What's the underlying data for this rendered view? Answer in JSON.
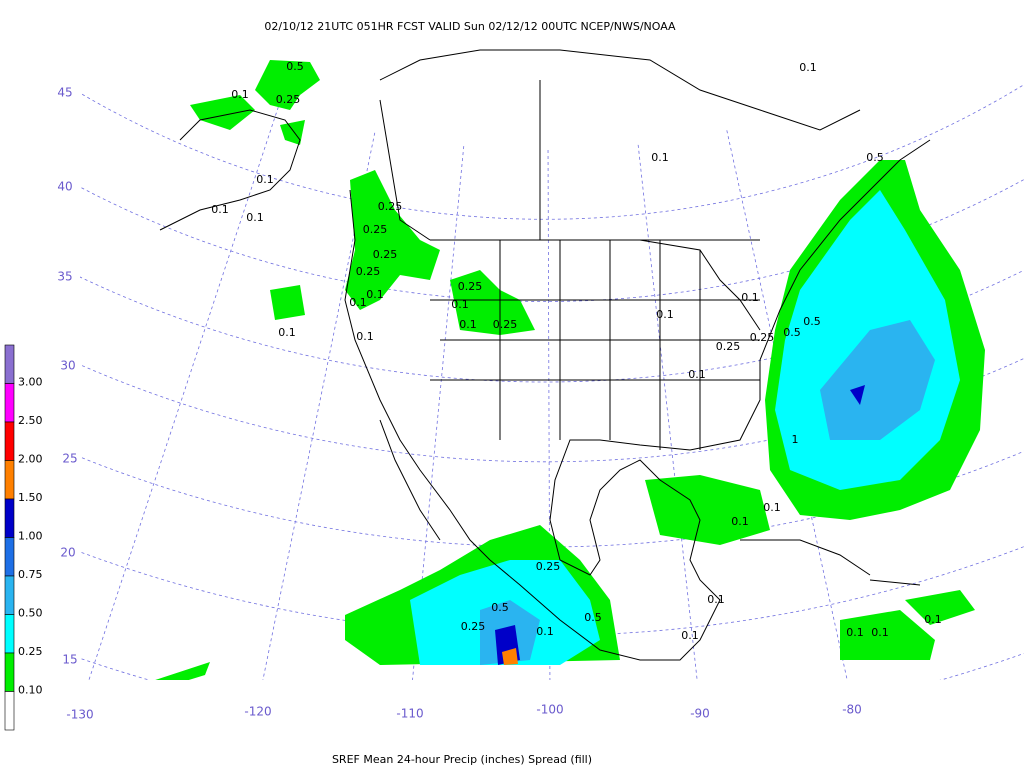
{
  "header": {
    "title": "02/10/12 21UTC  051HR  FCST VALID Sun 02/12/12 00UTC  NCEP/NWS/NOAA"
  },
  "footer": {
    "caption": "SREF Mean 24-hour Precip (inches) Spread (fill)"
  },
  "latitude_labels": [
    "45",
    "40",
    "35",
    "30",
    "25",
    "20",
    "15"
  ],
  "longitude_labels": [
    "-130",
    "-120",
    "-110",
    "-100",
    "-90",
    "-80"
  ],
  "legend": {
    "labels": [
      "3.00",
      "2.50",
      "2.00",
      "1.50",
      "1.00",
      "0.75",
      "0.50",
      "0.25",
      "0.10"
    ],
    "colors": [
      "#8a6fd0",
      "#ff00ff",
      "#ff0000",
      "#ff8000",
      "#0000c8",
      "#1e6fe6",
      "#2ab4f0",
      "#00ffff",
      "#00ee00",
      "#ffffff"
    ]
  },
  "contour_labels": [
    "0.5",
    "0.1",
    "0.25",
    "0.1",
    "0.1",
    "0.1",
    "0.25",
    "0.25",
    "0.25",
    "0.25",
    "0.1",
    "0.1",
    "0.1",
    "0.1",
    "0.25",
    "0.1",
    "0.1",
    "0.25",
    "0.1",
    "0.1",
    "0.1",
    "0.25",
    "0.25",
    "0.5",
    "0.5",
    "0.1",
    "0.5",
    "1",
    "0.1",
    "0.1",
    "0.25",
    "0.5",
    "0.25",
    "0.1",
    "0.5",
    "0.1",
    "0.1",
    "0.1",
    "0.1",
    "0.1",
    "0.1"
  ]
}
